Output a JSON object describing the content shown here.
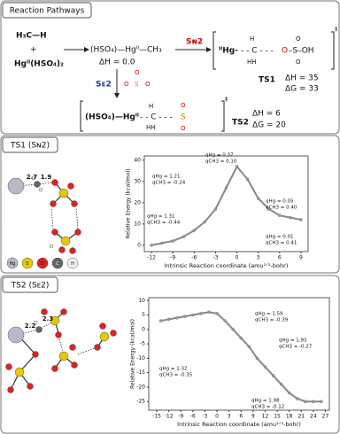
{
  "scheme": {
    "title": "Reaction Pathways",
    "reactant1": "H₃C—H",
    "plus": "+",
    "reactant2": "Hgᴵᴵ(HSO₄)₂",
    "product": "(HSO₄)—Hgᴵᴵ—CH₃",
    "product_dh": "ΔH = 0.0",
    "sn2": "Sɴ2",
    "se2": "Sᴇ2",
    "ts1_structure": [
      "ᴵᴵHg-",
      "- - C - - -",
      "O",
      "–S–OH",
      "H",
      "HH",
      "O",
      "O",
      "‡"
    ],
    "ts1_label": "TS1",
    "ts1_dh": "ΔH = 35",
    "ts1_dg": "ΔG = 33",
    "ts2_structure": [
      "(HSO₄)—Hgᴵᴵ",
      "- - C - - -",
      "S",
      "H",
      "HH",
      "O",
      "O",
      "‡"
    ],
    "se2_reagent": [
      "O",
      "S",
      "O",
      "O"
    ],
    "ts2_label": "TS2",
    "ts2_dh": "ΔH = 6",
    "ts2_dg": "ΔG = 20"
  },
  "atom_legend": [
    "Hg",
    "S",
    "O",
    "C",
    "H"
  ],
  "chart_data": [
    {
      "type": "line",
      "title": "TS1 (Sɴ2)",
      "bond_labels": [
        "2.7",
        "1.9"
      ],
      "x": [
        -12,
        -10.5,
        -9,
        -7.5,
        -6,
        -4.5,
        -3,
        -1.5,
        0,
        1.5,
        3,
        4.5,
        6,
        7.5,
        9
      ],
      "values": [
        0,
        1,
        2,
        4,
        7,
        11,
        17,
        27,
        37,
        31,
        22,
        17,
        14,
        13,
        12
      ],
      "color": "#888888",
      "xlim": [
        -13,
        10
      ],
      "xticks": [
        -12,
        -9,
        -6,
        -3,
        0,
        3,
        6,
        9
      ],
      "ylim": [
        -3,
        42
      ],
      "yticks": [
        0,
        10,
        20,
        30,
        40
      ],
      "xlabel": "Intrinsic Reaction coordinate (amu¹ᐟ²-bohr)",
      "ylabel": "Relative Energy (kcal/mol)",
      "annotations": [
        [
          "qHg = 1.21",
          "qCH3 = -0.24"
        ],
        [
          "qHg = 0.37",
          "qCH3 = 0.10"
        ],
        [
          "qHg = 1.31",
          "qCH3 = -0.44"
        ],
        [
          "qHg = 0.05",
          "qCH3 = 0.40"
        ],
        [
          "qHg = 0.01",
          "qCH3 = 0.41"
        ]
      ]
    },
    {
      "type": "line",
      "title": "TS2 (Sᴇ2)",
      "bond_labels": [
        "2.2",
        "2.3"
      ],
      "x": [
        -14,
        -12,
        -10,
        -8,
        -6,
        -4,
        -2,
        0,
        2,
        4,
        6,
        8,
        10,
        12,
        14,
        16,
        18,
        20,
        22,
        24,
        26
      ],
      "values": [
        3,
        3.5,
        4,
        4.5,
        5,
        5.5,
        6,
        5.5,
        3,
        0,
        -3,
        -6,
        -10,
        -13,
        -16,
        -19,
        -22,
        -24,
        -25,
        -25,
        -25
      ],
      "color": "#888888",
      "xlim": [
        -17,
        28
      ],
      "xticks": [
        -15,
        -12,
        -9,
        -6,
        -3,
        0,
        3,
        6,
        9,
        12,
        15,
        18,
        21,
        24,
        27
      ],
      "ylim": [
        -28,
        11
      ],
      "yticks": [
        -25,
        -20,
        -15,
        -10,
        -5,
        0,
        5,
        10
      ],
      "xlabel": "Intrinsic Reaction coordinate (amu¹ᐟ²-bohr)",
      "ylabel": "Relative Energy (kcal/mol)",
      "annotations": [
        [
          "qHg = 1.59",
          "qCH3 = -0.39"
        ],
        [
          "qHg = 1.32",
          "qCH3 = -0.35"
        ],
        [
          "qHg = 1.93",
          "qCH3 = -0.27"
        ],
        [
          "qHg = 1.98",
          "qCH3 = -0.12"
        ]
      ]
    }
  ]
}
